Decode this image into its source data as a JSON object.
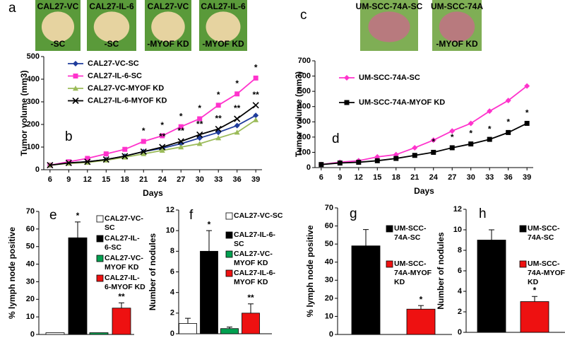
{
  "photos": [
    {
      "panel": "a",
      "color": "#5a9a3a",
      "tissue": "#e6d3a0",
      "items": [
        {
          "top": "CAL27-VC",
          "bottom": "-SC"
        },
        {
          "top": "CAL27-IL-6",
          "bottom": "-SC"
        },
        {
          "top": "CAL27-VC",
          "bottom": "-MYOF KD"
        },
        {
          "top": "CAL27-IL-6",
          "bottom": "-MYOF KD"
        }
      ]
    },
    {
      "panel": "c",
      "color": "#7fae55",
      "tissue": "#b87a7e",
      "items": [
        {
          "top": "UM-SCC-74A-SC",
          "bottom": null
        },
        {
          "top": "UM-SCC-74A",
          "bottom": "-MYOF KD"
        }
      ]
    }
  ],
  "chart_data": [
    {
      "type": "line",
      "panel": "b",
      "xlabel": "Days",
      "ylabel": "Tumor volume (mm3)",
      "x": [
        6,
        9,
        12,
        15,
        18,
        21,
        24,
        27,
        30,
        33,
        36,
        39
      ],
      "xlim": [
        5,
        40
      ],
      "xticks": [
        6,
        9,
        12,
        15,
        18,
        21,
        24,
        27,
        30,
        33,
        36,
        39
      ],
      "ylim": [
        0,
        500
      ],
      "yticks": [
        0,
        100,
        200,
        300,
        400,
        500
      ],
      "series": [
        {
          "name": "CAL27-VC-SC",
          "color": "#1f3c9c",
          "marker": "diamond",
          "values": [
            20,
            30,
            35,
            45,
            60,
            80,
            95,
            115,
            140,
            165,
            195,
            240
          ]
        },
        {
          "name": "CAL27-IL-6-SC",
          "color": "#ff33cc",
          "marker": "square",
          "values": [
            20,
            35,
            50,
            70,
            90,
            125,
            150,
            190,
            225,
            285,
            335,
            405
          ],
          "annotations": [
            null,
            null,
            null,
            null,
            null,
            "*",
            "*",
            "*",
            "*",
            "*",
            "*",
            "*"
          ]
        },
        {
          "name": "CAL27-VC-MYOF KD",
          "color": "#9bbb59",
          "marker": "triangle",
          "values": [
            20,
            28,
            32,
            42,
            55,
            70,
            85,
            100,
            115,
            140,
            165,
            220
          ]
        },
        {
          "name": "CAL27-IL-6-MYOF KD",
          "color": "#000000",
          "marker": "x",
          "values": [
            20,
            30,
            35,
            45,
            60,
            80,
            100,
            125,
            155,
            180,
            225,
            285
          ],
          "annotations": [
            null,
            null,
            null,
            null,
            null,
            null,
            "**",
            "**",
            "**",
            "**",
            "**",
            "**"
          ]
        }
      ]
    },
    {
      "type": "line",
      "panel": "d",
      "xlabel": "Days",
      "ylabel": "Tumor volume (mm3)",
      "x": [
        6,
        9,
        12,
        15,
        18,
        21,
        24,
        27,
        30,
        33,
        36,
        39
      ],
      "xlim": [
        5,
        40
      ],
      "xticks": [
        6,
        9,
        12,
        15,
        18,
        21,
        24,
        27,
        30,
        33,
        36,
        39
      ],
      "ylim": [
        0,
        700
      ],
      "yticks": [
        0,
        100,
        200,
        300,
        400,
        500,
        600,
        700
      ],
      "series": [
        {
          "name": "UM-SCC-74A-SC",
          "color": "#ff33cc",
          "marker": "diamond",
          "values": [
            20,
            35,
            45,
            70,
            85,
            130,
            180,
            240,
            290,
            370,
            440,
            535
          ]
        },
        {
          "name": "UM-SCC-74A-MYOF KD",
          "color": "#000000",
          "marker": "square",
          "values": [
            20,
            30,
            35,
            45,
            60,
            80,
            100,
            130,
            155,
            185,
            230,
            290
          ],
          "annotations": [
            null,
            null,
            null,
            null,
            null,
            null,
            "*",
            "*",
            "*",
            "*",
            "*",
            "*"
          ]
        }
      ]
    },
    {
      "type": "bar",
      "panel": "e",
      "ylabel": "% lymph node positive",
      "ylim": [
        0,
        70
      ],
      "yticks": [
        0,
        10,
        20,
        30,
        40,
        50,
        60,
        70
      ],
      "series": [
        {
          "name": "CAL27-VC-SC",
          "color": "#ffffff",
          "values": [
            1
          ],
          "errors": [
            0
          ]
        },
        {
          "name": "CAL27-IL-6-SC",
          "color": "#000000",
          "values": [
            55
          ],
          "errors": [
            9
          ],
          "annotation": "*"
        },
        {
          "name": "CAL27-VC-MYOF KD",
          "color": "#00a050",
          "values": [
            1
          ],
          "errors": [
            0
          ]
        },
        {
          "name": "CAL27-IL-6-MYOF KD",
          "color": "#ee1111",
          "values": [
            15
          ],
          "errors": [
            3
          ],
          "annotation": "**"
        }
      ]
    },
    {
      "type": "bar",
      "panel": "f",
      "ylabel": "Number of nodules",
      "ylim": [
        0,
        12
      ],
      "yticks": [
        0,
        2,
        4,
        6,
        8,
        10,
        12
      ],
      "series": [
        {
          "name": "CAL27-VC-SC",
          "color": "#ffffff",
          "values": [
            1
          ],
          "errors": [
            0.5
          ]
        },
        {
          "name": "CAL27-IL-6-SC",
          "color": "#000000",
          "values": [
            8
          ],
          "errors": [
            2
          ],
          "annotation": "*"
        },
        {
          "name": "CAL27-VC-MYOF KD",
          "color": "#00a050",
          "values": [
            0.5
          ],
          "errors": [
            0.15
          ]
        },
        {
          "name": "CAL27-IL-6-MYOF KD",
          "color": "#ee1111",
          "values": [
            2
          ],
          "errors": [
            0.9
          ],
          "annotation": "**"
        }
      ]
    },
    {
      "type": "bar",
      "panel": "g",
      "ylabel": "% lymph node positive",
      "ylim": [
        0,
        70
      ],
      "yticks": [
        0,
        10,
        20,
        30,
        40,
        50,
        60,
        70
      ],
      "series": [
        {
          "name": "UM-SCC-74A-SC",
          "color": "#000000",
          "values": [
            49
          ],
          "errors": [
            9
          ]
        },
        {
          "name": "UM-SCC-74A-MYOF KD",
          "color": "#ee1111",
          "values": [
            14
          ],
          "errors": [
            2
          ],
          "annotation": "*"
        }
      ]
    },
    {
      "type": "bar",
      "panel": "h",
      "ylabel": "Number of nodules",
      "ylim": [
        0,
        12
      ],
      "yticks": [
        0,
        2,
        4,
        6,
        8,
        10,
        12
      ],
      "series": [
        {
          "name": "UM-SCC-74A-SC",
          "color": "#000000",
          "values": [
            9
          ],
          "errors": [
            1
          ]
        },
        {
          "name": "UM-SCC-74A-MYOF KD",
          "color": "#ee1111",
          "values": [
            3
          ],
          "errors": [
            0.5
          ],
          "annotation": "*"
        }
      ]
    }
  ]
}
